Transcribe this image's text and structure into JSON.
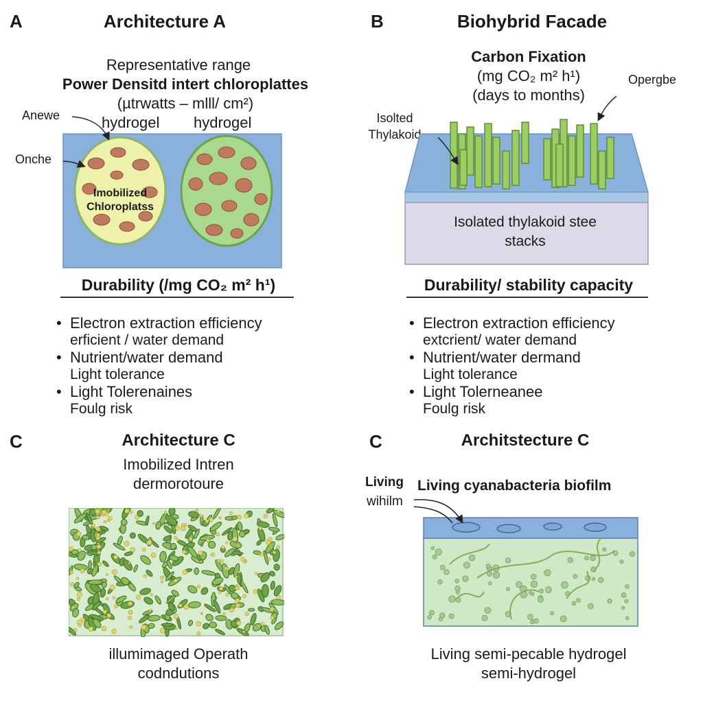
{
  "panel_a": {
    "letter": "A",
    "title": "Architecture A",
    "line1": "Representative range",
    "line2": "Power Densitd intert chloroplattes",
    "line3": "(µtrwatts – mlll/ cm²)",
    "hydrogel_left": "hydrogel",
    "hydrogel_right": "hydrogel",
    "label_anewe": "Anewe",
    "label_onche": "Onche",
    "capsule_label_1": "Imobilized",
    "capsule_label_2": "Chloroplatss",
    "durability": "Durability (/mg CO₂ m² h¹)",
    "bullets": [
      {
        "text": "Electron extraction efficiency",
        "bullet": true
      },
      {
        "text": "erficient / water demand",
        "bullet": false
      },
      {
        "text": "Nutrient/water demand",
        "bullet": true
      },
      {
        "text": "Light tolerance",
        "bullet": false
      },
      {
        "text": "Light Tolerenaines",
        "bullet": true
      },
      {
        "text": "Foulg risk",
        "bullet": false
      }
    ]
  },
  "panel_b": {
    "letter": "B",
    "title": "Biohybrid Facade",
    "line1": "Carbon Fixation",
    "line2": "(mg CO₂  m²   h¹)",
    "line3": "(days to months)",
    "label_opergbe": "Opergbe",
    "label_isolted_1": "Isolted",
    "label_isolted_2": "Thylakoid",
    "block_label_1": "Isolated thylakoid stee",
    "block_label_2": "stacks",
    "durability": "Durability/ stability capacity",
    "bullets": [
      {
        "text": "Electron extraction efficiency",
        "bullet": true
      },
      {
        "text": "extcrient/ water demand",
        "bullet": false
      },
      {
        "text": "Nutrient/water dermand",
        "bullet": true
      },
      {
        "text": "Light tolerance",
        "bullet": false
      },
      {
        "text": "Light Tolerneanee",
        "bullet": true
      },
      {
        "text": "Foulg risk",
        "bullet": false
      }
    ]
  },
  "panel_c": {
    "letter": "C",
    "title": "Architecture C",
    "line1": "Imobilized Intren",
    "line2": "dermorotoure",
    "caption1": "illumimaged Operath",
    "caption2": "codndutions"
  },
  "panel_d": {
    "letter": "C",
    "title": "Architstecture C",
    "label_living": "Living",
    "label_wihilm": "wihilm",
    "biofilm_label": "Living cyanabacteria biofilm",
    "caption1": "Living semi-pecable hydrogel",
    "caption2": "semi-hydrogel"
  },
  "colors": {
    "hydrogel_blue": "#7fa8d6",
    "capsule_yellow": "#eef0a8",
    "chloroplast_brown": "#b87358",
    "green": "#8cc46a",
    "biofilm_green": "#cfe8c6"
  }
}
